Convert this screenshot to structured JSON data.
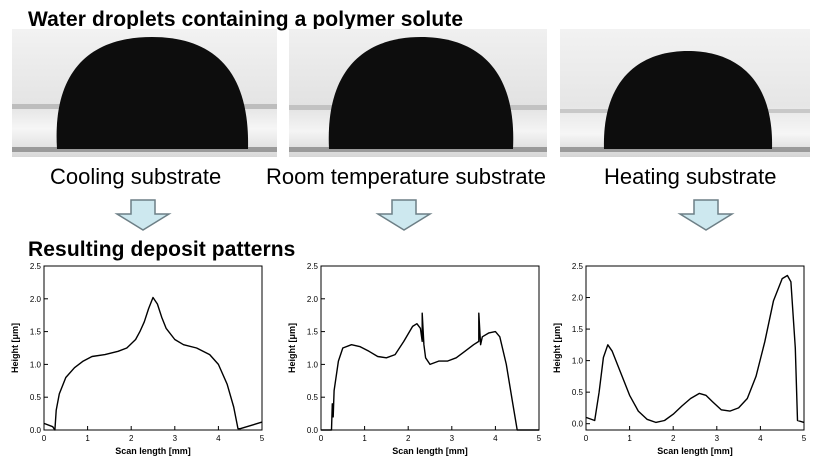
{
  "header": {
    "title": "Water droplets containing a polymer solute"
  },
  "panels": [
    {
      "label": "Cooling substrate"
    },
    {
      "label": "Room temperature substrate"
    },
    {
      "label": "Heating substrate"
    }
  ],
  "section": {
    "title": "Resulting deposit patterns"
  },
  "colors": {
    "arrow_fill": "#cde8ef",
    "arrow_stroke": "#6d7f86",
    "droplet": "#0d0d0d",
    "line": "#000000"
  },
  "chart_data": [
    {
      "type": "line",
      "title": "",
      "xlabel": "Scan length [mm]",
      "ylabel": "Height [μm]",
      "xlim": [
        0,
        5
      ],
      "ylim": [
        0,
        2.5
      ],
      "xticks": [
        0,
        1,
        2,
        3,
        4,
        5
      ],
      "yticks": [
        0.0,
        0.5,
        1.0,
        1.5,
        2.0,
        2.5
      ],
      "series": [
        {
          "x": [
            0,
            0.2,
            0.25,
            0.28,
            0.35,
            0.5,
            0.7,
            0.9,
            1.1,
            1.4,
            1.7,
            1.9,
            2.1,
            2.2,
            2.3,
            2.4,
            2.5,
            2.6,
            2.7,
            2.8,
            3.0,
            3.2,
            3.5,
            3.8,
            4.0,
            4.2,
            4.35,
            4.45,
            4.5,
            5.0
          ],
          "y": [
            0.1,
            0.05,
            -0.05,
            0.3,
            0.55,
            0.8,
            0.95,
            1.05,
            1.12,
            1.15,
            1.2,
            1.25,
            1.38,
            1.5,
            1.65,
            1.85,
            2.02,
            1.92,
            1.72,
            1.55,
            1.38,
            1.3,
            1.25,
            1.15,
            1.0,
            0.7,
            0.35,
            0.02,
            0.02,
            0.12
          ]
        }
      ]
    },
    {
      "type": "line",
      "title": "",
      "xlabel": "Scan length [mm]",
      "ylabel": "Height [μm]",
      "xlim": [
        0,
        5
      ],
      "ylim": [
        0,
        2.5
      ],
      "xticks": [
        0,
        1,
        2,
        3,
        4,
        5
      ],
      "yticks": [
        0.0,
        0.5,
        1.0,
        1.5,
        2.0,
        2.5
      ],
      "series": [
        {
          "x": [
            0,
            0.2,
            0.24,
            0.26,
            0.28,
            0.3,
            0.4,
            0.5,
            0.7,
            0.9,
            1.1,
            1.3,
            1.5,
            1.7,
            1.9,
            2.1,
            2.2,
            2.28,
            2.32,
            2.32,
            2.36,
            2.4,
            2.5,
            2.7,
            2.9,
            3.1,
            3.3,
            3.5,
            3.62,
            3.62,
            3.66,
            3.7,
            3.85,
            4.0,
            4.1,
            4.25,
            4.4,
            4.5,
            5.0
          ],
          "y": [
            0,
            0,
            0,
            0.4,
            0.2,
            0.6,
            1.05,
            1.25,
            1.3,
            1.27,
            1.2,
            1.12,
            1.1,
            1.15,
            1.35,
            1.58,
            1.62,
            1.55,
            1.35,
            1.78,
            1.3,
            1.1,
            1.0,
            1.05,
            1.05,
            1.1,
            1.2,
            1.3,
            1.35,
            1.78,
            1.3,
            1.42,
            1.48,
            1.5,
            1.42,
            1.0,
            0.4,
            0,
            0
          ]
        }
      ]
    },
    {
      "type": "line",
      "title": "",
      "xlabel": "Scan length [mm]",
      "ylabel": "Height [μm]",
      "xlim": [
        0,
        5
      ],
      "ylim": [
        -0.1,
        2.5
      ],
      "xticks": [
        0,
        1,
        2,
        3,
        4,
        5
      ],
      "yticks": [
        0.0,
        0.5,
        1.0,
        1.5,
        2.0,
        2.5
      ],
      "series": [
        {
          "x": [
            0,
            0.2,
            0.3,
            0.4,
            0.5,
            0.6,
            0.8,
            1.0,
            1.2,
            1.4,
            1.6,
            1.8,
            2.0,
            2.2,
            2.4,
            2.6,
            2.75,
            2.9,
            3.1,
            3.3,
            3.5,
            3.7,
            3.9,
            4.1,
            4.3,
            4.5,
            4.62,
            4.7,
            4.8,
            4.85,
            5.0
          ],
          "y": [
            0.1,
            0.05,
            0.5,
            1.05,
            1.25,
            1.15,
            0.8,
            0.45,
            0.2,
            0.07,
            0.02,
            0.05,
            0.15,
            0.28,
            0.4,
            0.48,
            0.45,
            0.35,
            0.22,
            0.2,
            0.25,
            0.4,
            0.75,
            1.3,
            1.95,
            2.3,
            2.35,
            2.25,
            1.2,
            0.05,
            0.02
          ]
        }
      ]
    }
  ]
}
